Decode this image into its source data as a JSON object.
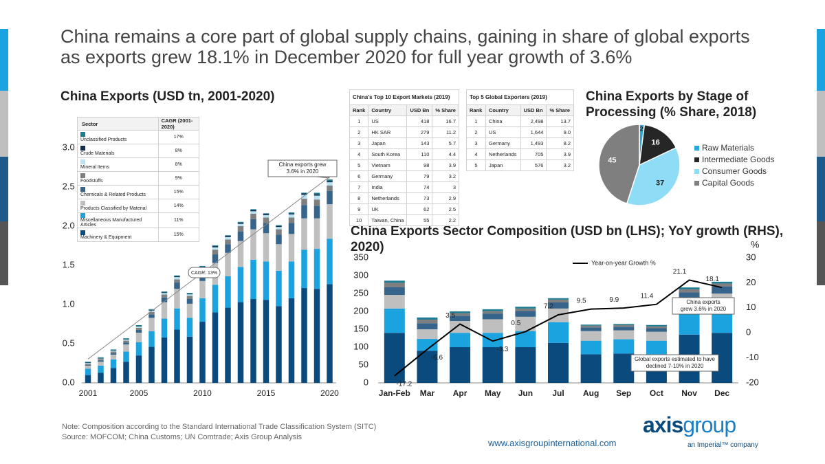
{
  "header": {
    "title": "China remains a core part of global supply chains, gaining in share of global exports as exports grew 18.1% in December 2020 for full year growth of 3.6%"
  },
  "chart_data": [
    {
      "type": "bar",
      "stacked": true,
      "title": "China Exports (USD tn, 2001-2020)",
      "categories": [
        "2001",
        null,
        null,
        null,
        "2005",
        null,
        null,
        null,
        null,
        "2010",
        null,
        null,
        null,
        null,
        "2015",
        null,
        null,
        null,
        null,
        "2020"
      ],
      "ylim": [
        0,
        3
      ],
      "yticks": [
        {
          "value": 0,
          "label": "0.0"
        },
        0.5,
        {
          "value": 1,
          "label": "1.0"
        },
        1.5,
        {
          "value": 2,
          "label": "2.0"
        },
        2.5,
        {
          "value": 3,
          "label": "3.0"
        }
      ],
      "legend_header": [
        "Sector",
        "CAGR (2001-2020)"
      ],
      "series": [
        {
          "name": "Machinery & Equipment",
          "cagr": "15%",
          "color": "#0b4a7d",
          "values": [
            0.1,
            0.13,
            0.19,
            0.27,
            0.35,
            0.46,
            0.58,
            0.68,
            0.59,
            0.78,
            0.9,
            0.96,
            1.03,
            1.07,
            1.06,
            0.98,
            1.08,
            1.21,
            1.2,
            1.26
          ]
        },
        {
          "name": "Miscellaneous Manufactured Articles",
          "cagr": "11%",
          "color": "#1aa3de",
          "values": [
            0.08,
            0.09,
            0.11,
            0.13,
            0.17,
            0.2,
            0.24,
            0.27,
            0.24,
            0.3,
            0.35,
            0.4,
            0.45,
            0.5,
            0.49,
            0.45,
            0.47,
            0.49,
            0.51,
            0.58
          ]
        },
        {
          "name": "Products Classified by Material",
          "cagr": "14%",
          "color": "#bfbfbf",
          "values": [
            0.04,
            0.05,
            0.06,
            0.09,
            0.12,
            0.17,
            0.21,
            0.25,
            0.18,
            0.22,
            0.28,
            0.3,
            0.33,
            0.39,
            0.36,
            0.34,
            0.35,
            0.4,
            0.39,
            0.44
          ]
        },
        {
          "name": "Chemicals & Related Products",
          "cagr": "15%",
          "color": "#36648b",
          "values": [
            0.01,
            0.015,
            0.02,
            0.026,
            0.036,
            0.045,
            0.06,
            0.08,
            0.06,
            0.09,
            0.11,
            0.11,
            0.12,
            0.13,
            0.13,
            0.12,
            0.14,
            0.17,
            0.16,
            0.17
          ]
        },
        {
          "name": "Foodstuffs",
          "cagr": "9%",
          "color": "#7f7f7f",
          "values": [
            0.016,
            0.018,
            0.02,
            0.023,
            0.026,
            0.03,
            0.037,
            0.04,
            0.04,
            0.05,
            0.06,
            0.06,
            0.07,
            0.07,
            0.07,
            0.07,
            0.07,
            0.08,
            0.08,
            0.07
          ]
        },
        {
          "name": "Mineral Items",
          "cagr": "8%",
          "color": "#b9e3f2",
          "values": [
            0.008,
            0.008,
            0.011,
            0.014,
            0.018,
            0.018,
            0.02,
            0.03,
            0.02,
            0.03,
            0.03,
            0.03,
            0.03,
            0.03,
            0.03,
            0.03,
            0.04,
            0.05,
            0.05,
            0.04
          ]
        },
        {
          "name": "Crude Materials",
          "cagr": "8%",
          "color": "#0f2d4a",
          "values": [
            0.005,
            0.005,
            0.005,
            0.006,
            0.007,
            0.008,
            0.009,
            0.011,
            0.008,
            0.012,
            0.015,
            0.014,
            0.015,
            0.016,
            0.014,
            0.013,
            0.015,
            0.017,
            0.016,
            0.016
          ]
        },
        {
          "name": "Unclassified Products",
          "cagr": "17%",
          "color": "#1b7c93",
          "values": [
            0.01,
            0.01,
            0.01,
            0.01,
            0.01,
            0.01,
            0.01,
            0.01,
            0.01,
            0.01,
            0.01,
            0.01,
            0.01,
            0.01,
            0.01,
            0.01,
            0.01,
            0.01,
            0.02,
            0.02
          ]
        }
      ],
      "annotations": [
        "China exports grew 3.6% in 2020",
        "CAGR: 13%"
      ]
    },
    {
      "type": "pie",
      "title": "China Exports by Stage of Processing (% Share, 2018)",
      "categories": [
        "Raw Materials",
        "Intermediate Goods",
        "Consumer Goods",
        "Capital Goods"
      ],
      "values": [
        2,
        16,
        37,
        45
      ],
      "colors": [
        "#2aa6d8",
        "#262626",
        "#8fdcf7",
        "#7f7f7f"
      ]
    },
    {
      "type": "bar",
      "stacked": true,
      "title": "China Exports Sector Composition (USD bn (LHS); YoY growth (RHS), 2020)",
      "categories": [
        "Jan-Feb",
        "Mar",
        "Apr",
        "May",
        "Jun",
        "Jul",
        "Aug",
        "Sep",
        "Oct",
        "Nov",
        "Dec"
      ],
      "ylim": [
        0,
        350
      ],
      "yticks": [
        0,
        50,
        100,
        150,
        200,
        250,
        300,
        350
      ],
      "y2lim": [
        -20,
        30
      ],
      "y2ticks": [
        -20,
        -10,
        0,
        10,
        20,
        30
      ],
      "y2label": "%",
      "series": [
        {
          "color": "#0b4a7d",
          "values": [
            140,
            90,
            100,
            100,
            100,
            112,
            80,
            82,
            80,
            135,
            140
          ]
        },
        {
          "color": "#1aa3de",
          "values": [
            68,
            33,
            40,
            40,
            45,
            58,
            38,
            40,
            38,
            62,
            70
          ]
        },
        {
          "color": "#bfbfbf",
          "values": [
            38,
            27,
            33,
            38,
            40,
            38,
            27,
            25,
            25,
            38,
            40
          ]
        },
        {
          "color": "#36648b",
          "values": [
            22,
            17,
            15,
            16,
            16,
            17,
            10,
            10,
            10,
            18,
            20
          ]
        },
        {
          "color": "#7f7f7f",
          "values": [
            12,
            10,
            7,
            7,
            7,
            8,
            5,
            5,
            5,
            9,
            8
          ]
        },
        {
          "color": "#1b7c93",
          "values": [
            6,
            6,
            5,
            5,
            5,
            4,
            3,
            3,
            4,
            5,
            5
          ]
        },
        {
          "name": "Year-on-year Growth %",
          "type": "line",
          "axis": "y2",
          "color": "#000000",
          "values": [
            -17.2,
            -6.6,
            3.5,
            -3.3,
            0.5,
            7.2,
            9.5,
            9.9,
            11.4,
            21.1,
            18.1
          ]
        }
      ],
      "annotations": [
        "China exports grew 3.6% in 2020",
        "Global exports estimated to have declined 7-10% in 2020"
      ]
    }
  ],
  "tables": [
    {
      "title": "China's Top 10 Export Markets (2019)",
      "columns": [
        "Rank",
        "Country",
        "USD Bn",
        "% Share"
      ],
      "rows": [
        [
          1,
          "US",
          418,
          16.7
        ],
        [
          2,
          "HK SAR",
          279,
          11.2
        ],
        [
          3,
          "Japan",
          143,
          5.7
        ],
        [
          4,
          "South Korea",
          110,
          4.4
        ],
        [
          5,
          "Vietnam",
          98,
          3.9
        ],
        [
          6,
          "Germany",
          79,
          3.2
        ],
        [
          7,
          "India",
          74,
          3
        ],
        [
          8,
          "Netherlands",
          73,
          2.9
        ],
        [
          9,
          "UK",
          62,
          2.5
        ],
        [
          10,
          "Taiwan, China",
          55,
          2.2
        ]
      ]
    },
    {
      "title": "Top 5 Global Exporters (2019)",
      "columns": [
        "Rank",
        "Country",
        "USD Bn",
        "% Share"
      ],
      "rows": [
        [
          1,
          "China",
          "2,498",
          13.7
        ],
        [
          2,
          "US",
          "1,644",
          "9.0"
        ],
        [
          3,
          "Germany",
          "1,493",
          8.2
        ],
        [
          4,
          "Netherlands",
          705,
          3.9
        ],
        [
          5,
          "Japan",
          576,
          3.2
        ]
      ]
    }
  ],
  "notes": [
    "Note: Composition according to the Standard International Trade Classification System (SITC)",
    "Source: MOFCOM; China Customs; UN Comtrade; Axis Group Analysis"
  ],
  "footer": {
    "website": "www.axisgroupinternational.com",
    "logo": [
      "axis",
      "group"
    ],
    "tagline": "an Imperial™ company"
  }
}
